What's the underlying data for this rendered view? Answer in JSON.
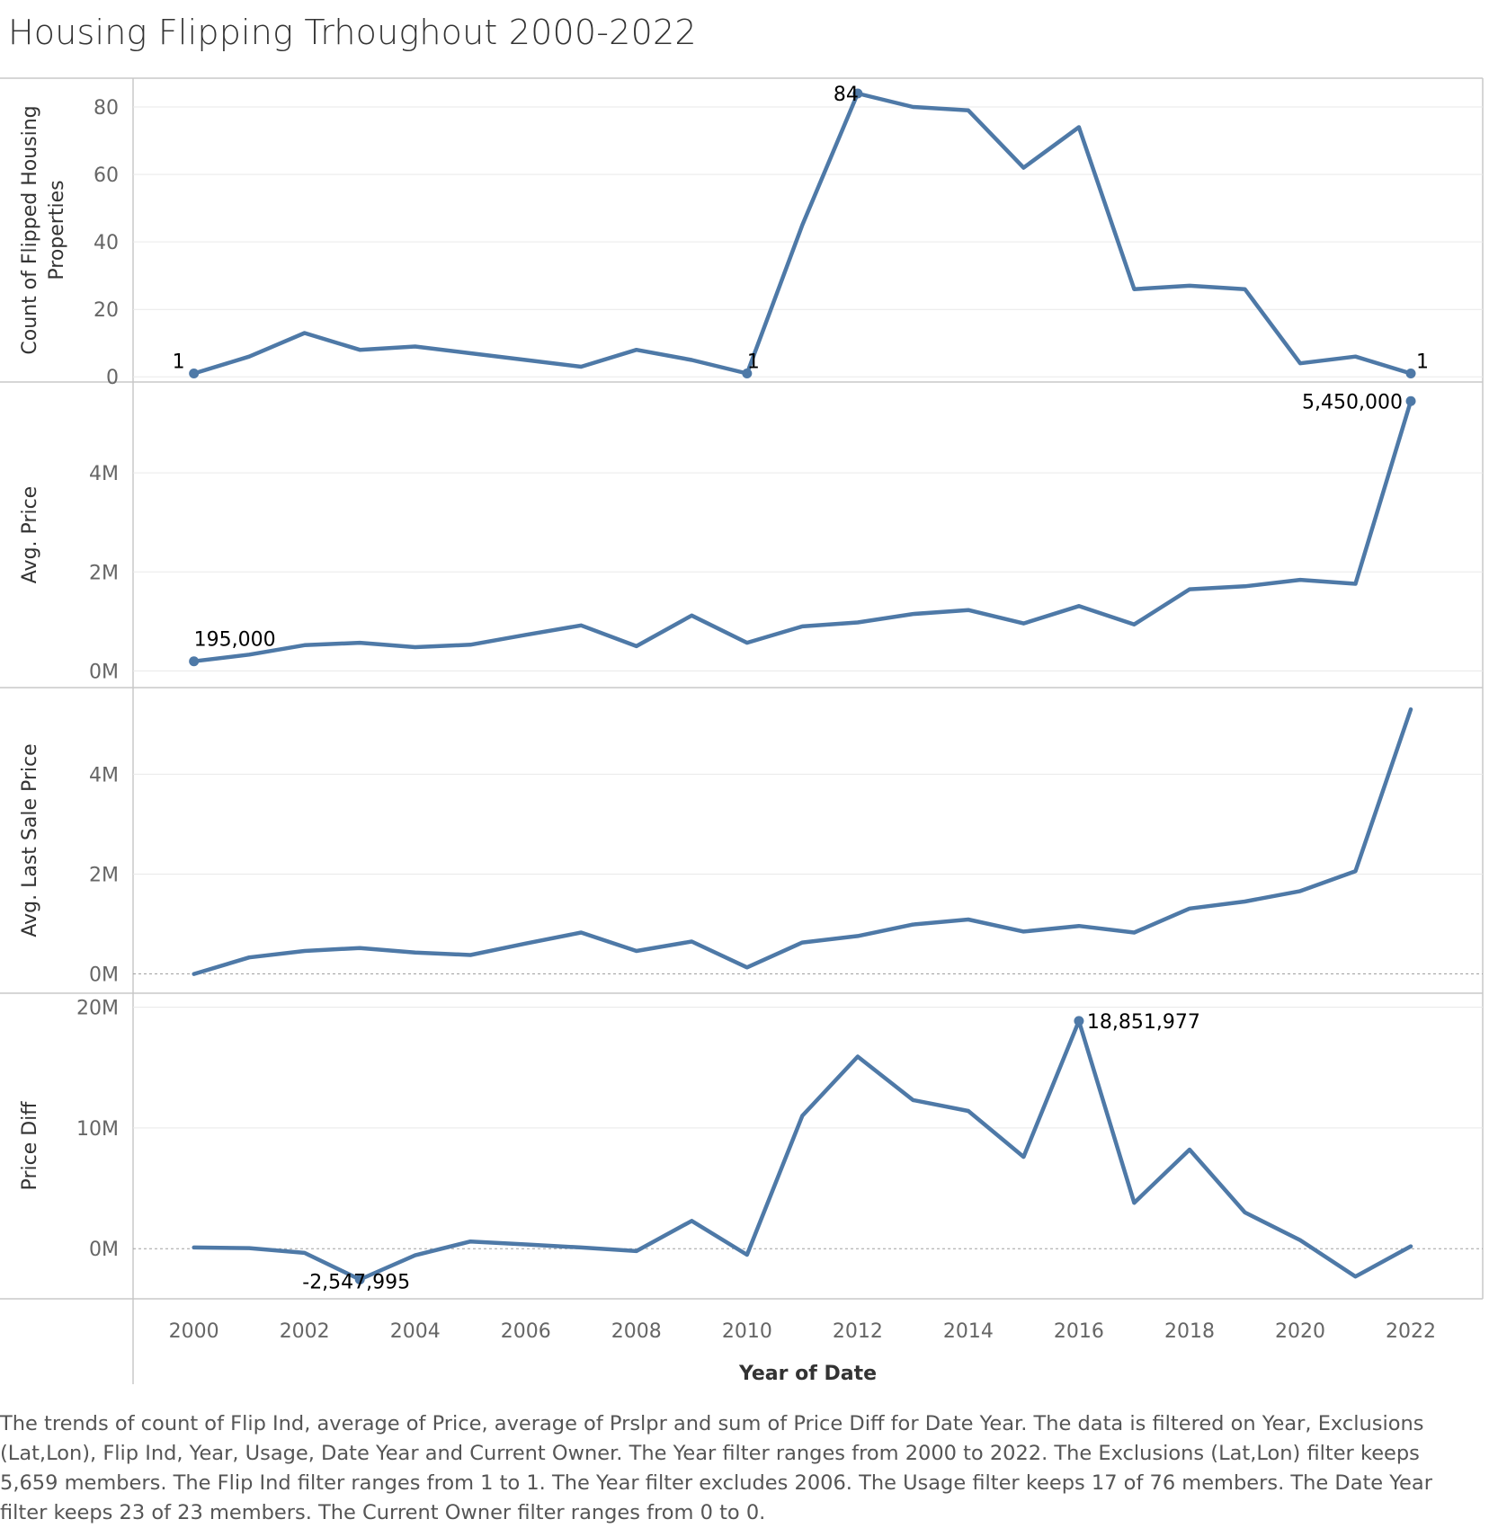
{
  "title": "Housing Flipping Trhoughout 2000-2022",
  "caption": "The trends of count of Flip Ind, average of Price, average of Prslpr and sum of Price Diff for Date Year. The data is filtered on Year, Exclusions (Lat,Lon), Flip Ind, Year, Usage, Date Year and Current Owner. The Year filter ranges from 2000 to 2022. The Exclusions (Lat,Lon) filter keeps 5,659 members. The Flip Ind filter ranges from 1 to 1. The Year filter excludes 2006. The Usage filter keeps 17 of 76 members. The Date Year filter keeps 23 of 23 members. The Current Owner filter ranges from 0 to 0.",
  "colors": {
    "line": "#4e79a7",
    "grid": "#e9e9e9",
    "axis": "#c8c8c8",
    "zero_line": "#a0a0a0"
  },
  "chart_data": {
    "type": "line",
    "xlabel": "Year of Date",
    "x": [
      2000,
      2001,
      2002,
      2003,
      2004,
      2005,
      2006,
      2007,
      2008,
      2009,
      2010,
      2011,
      2012,
      2013,
      2014,
      2015,
      2016,
      2017,
      2018,
      2019,
      2020,
      2021,
      2022
    ],
    "x_ticks": [
      "2000",
      "2002",
      "2004",
      "2006",
      "2008",
      "2010",
      "2012",
      "2014",
      "2016",
      "2018",
      "2020",
      "2022"
    ],
    "xlim": [
      1998.9,
      2023.3
    ],
    "panels": [
      {
        "ylabel": "Count of Flipped Housing Properties",
        "ylim": [
          -1,
          88
        ],
        "y_ticks": [
          0,
          20,
          40,
          60,
          80
        ],
        "y_tick_labels": [
          "0",
          "20",
          "40",
          "60",
          "80"
        ],
        "zero_line": false,
        "values": [
          1,
          6,
          13,
          8,
          9,
          7,
          5,
          3,
          8,
          5,
          1,
          45,
          84,
          80,
          79,
          62,
          74,
          26,
          27,
          26,
          4,
          6,
          1
        ],
        "labels": [
          {
            "year": 2000,
            "text": "1",
            "dot": true
          },
          {
            "year": 2010,
            "text": "1",
            "dot": true
          },
          {
            "year": 2012,
            "text": "84",
            "dot": true
          },
          {
            "year": 2022,
            "text": "1",
            "dot": true
          }
        ]
      },
      {
        "ylabel": "Avg. Price",
        "ylim": [
          -300000,
          5800000
        ],
        "y_ticks": [
          0,
          2000000,
          4000000
        ],
        "y_tick_labels": [
          "0M",
          "2M",
          "4M"
        ],
        "zero_line": false,
        "values": [
          195000,
          330000,
          520000,
          570000,
          480000,
          530000,
          730000,
          920000,
          500000,
          1120000,
          570000,
          900000,
          980000,
          1150000,
          1230000,
          960000,
          1310000,
          940000,
          1650000,
          1710000,
          1840000,
          1760000,
          5450000
        ],
        "labels": [
          {
            "year": 2000,
            "text": "195,000",
            "dot": true
          },
          {
            "year": 2022,
            "text": "5,450,000",
            "dot": true
          }
        ]
      },
      {
        "ylabel": "Avg. Last Sale Price",
        "ylim": [
          -350000,
          5700000
        ],
        "y_ticks": [
          0,
          2000000,
          4000000
        ],
        "y_tick_labels": [
          "0M",
          "2M",
          "4M"
        ],
        "zero_line": true,
        "values": [
          0,
          330000,
          460000,
          520000,
          430000,
          380000,
          610000,
          830000,
          460000,
          650000,
          130000,
          630000,
          760000,
          990000,
          1090000,
          850000,
          960000,
          830000,
          1310000,
          1450000,
          1660000,
          2060000,
          5300000
        ],
        "labels": []
      },
      {
        "ylabel": "Price Diff",
        "ylim": [
          -4000000,
          21000000
        ],
        "y_ticks": [
          0,
          10000000,
          20000000
        ],
        "y_tick_labels": [
          "0M",
          "10M",
          "20M"
        ],
        "zero_line": true,
        "values": [
          100000,
          50000,
          -350000,
          -2547995,
          -550000,
          600000,
          350000,
          100000,
          -200000,
          2300000,
          -500000,
          11000000,
          15900000,
          12300000,
          11400000,
          7600000,
          18851977,
          3800000,
          8200000,
          3000000,
          700000,
          -2300000,
          200000
        ],
        "labels": [
          {
            "year": 2003,
            "text": "-2,547,995",
            "dot": true
          },
          {
            "year": 2016,
            "text": "18,851,977",
            "dot": true
          }
        ]
      }
    ]
  }
}
